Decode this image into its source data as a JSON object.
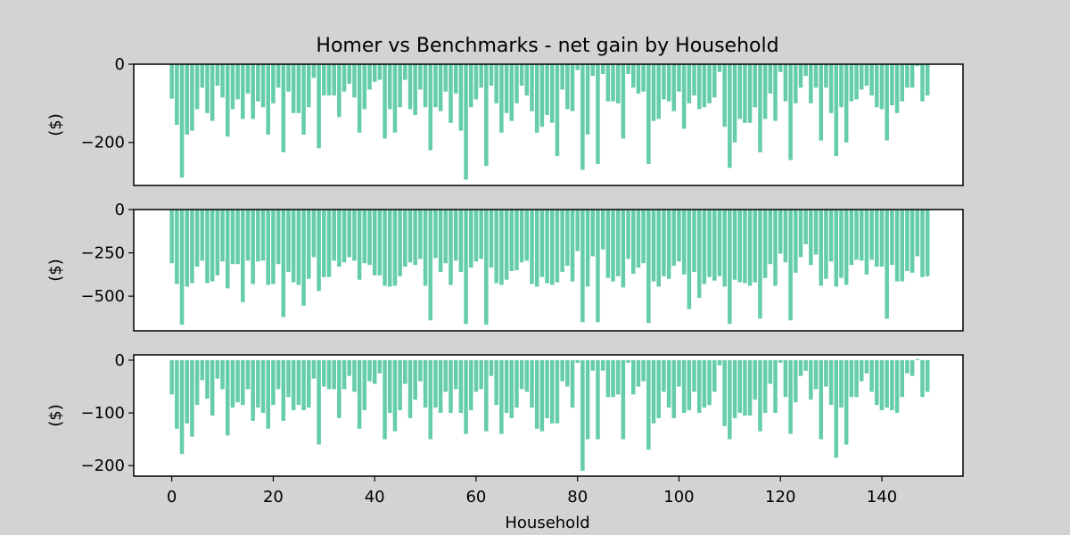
{
  "chart_data": {
    "type": "bar",
    "title": "Homer vs Benchmarks - net gain by Household",
    "xlabel": "Household",
    "bar_color": "#66cdaa",
    "figure_background": "#d3d3d3",
    "axes_background": "#ffffff",
    "x": {
      "start": 0,
      "count": 149,
      "xlim": [
        -7.5,
        156
      ],
      "ticks": [
        0,
        20,
        40,
        60,
        80,
        100,
        120,
        140
      ],
      "tick_labels": [
        "0",
        "20",
        "40",
        "60",
        "80",
        "100",
        "120",
        "140"
      ]
    },
    "panels": [
      {
        "ylabel": "($)",
        "ylim": [
          -310,
          0
        ],
        "ticks": [
          0,
          -200
        ],
        "tick_labels": [
          "0",
          "−200"
        ],
        "values": [
          -88,
          -155,
          -290,
          -180,
          -170,
          -115,
          -60,
          -125,
          -145,
          -55,
          -85,
          -185,
          -115,
          -90,
          -140,
          -75,
          -140,
          -95,
          -110,
          -180,
          -100,
          -60,
          -225,
          -70,
          -125,
          -125,
          -180,
          -110,
          -35,
          -215,
          -80,
          -80,
          -80,
          -135,
          -70,
          -50,
          -85,
          -175,
          -115,
          -65,
          -45,
          -40,
          -190,
          -115,
          -175,
          -110,
          -40,
          -115,
          -130,
          -65,
          -110,
          -220,
          -110,
          -120,
          -70,
          -150,
          -75,
          -170,
          -295,
          -110,
          -90,
          -60,
          -260,
          -55,
          -100,
          -175,
          -125,
          -145,
          -100,
          -55,
          -80,
          -120,
          -175,
          -160,
          -130,
          -150,
          -235,
          -65,
          -115,
          -120,
          -15,
          -270,
          -180,
          -30,
          -255,
          -25,
          -95,
          -95,
          -100,
          -190,
          -25,
          -60,
          -75,
          -70,
          -255,
          -145,
          -140,
          -90,
          -95,
          -120,
          -70,
          -165,
          -100,
          -80,
          -115,
          -110,
          -100,
          -85,
          -20,
          -160,
          -265,
          -200,
          -140,
          -150,
          -150,
          -110,
          -225,
          -140,
          -75,
          -145,
          -20,
          -95,
          -245,
          -100,
          -60,
          -30,
          -100,
          -60,
          -195,
          -60,
          -125,
          -235,
          -110,
          -200,
          -95,
          -90,
          -65,
          -55,
          -80,
          -110,
          -115,
          -195,
          -105,
          -125,
          -95,
          -60,
          -60,
          -5,
          -95,
          -80
        ]
      },
      {
        "ylabel": "($)",
        "ylim": [
          -700,
          0
        ],
        "ticks": [
          0,
          -250,
          -500
        ],
        "tick_labels": [
          "0",
          "−250",
          "−500"
        ],
        "values": [
          -310,
          -430,
          -665,
          -445,
          -425,
          -330,
          -295,
          -425,
          -415,
          -380,
          -300,
          -455,
          -315,
          -315,
          -535,
          -295,
          -430,
          -300,
          -295,
          -435,
          -430,
          -315,
          -620,
          -360,
          -420,
          -435,
          -555,
          -400,
          -275,
          -470,
          -390,
          -390,
          -295,
          -330,
          -305,
          -275,
          -295,
          -405,
          -310,
          -320,
          -380,
          -380,
          -440,
          -445,
          -440,
          -385,
          -330,
          -305,
          -320,
          -285,
          -440,
          -640,
          -280,
          -360,
          -310,
          -435,
          -295,
          -360,
          -660,
          -335,
          -300,
          -285,
          -665,
          -335,
          -425,
          -435,
          -405,
          -355,
          -350,
          -305,
          -295,
          -430,
          -445,
          -390,
          -425,
          -435,
          -420,
          -360,
          -325,
          -415,
          -240,
          -650,
          -445,
          -270,
          -650,
          -230,
          -395,
          -415,
          -385,
          -450,
          -285,
          -370,
          -335,
          -310,
          -655,
          -415,
          -445,
          -385,
          -400,
          -325,
          -300,
          -375,
          -575,
          -360,
          -510,
          -430,
          -390,
          -410,
          -385,
          -445,
          -660,
          -405,
          -420,
          -425,
          -440,
          -420,
          -630,
          -395,
          -315,
          -440,
          -255,
          -305,
          -640,
          -365,
          -275,
          -200,
          -320,
          -260,
          -440,
          -400,
          -300,
          -445,
          -395,
          -435,
          -320,
          -290,
          -295,
          -375,
          -290,
          -330,
          -330,
          -630,
          -320,
          -415,
          -415,
          -355,
          -365,
          -270,
          -390,
          -385
        ]
      },
      {
        "ylabel": "($)",
        "ylim": [
          -220,
          10
        ],
        "ticks": [
          0,
          -100,
          -200
        ],
        "tick_labels": [
          "0",
          "−100",
          "−200"
        ],
        "values": [
          -65,
          -130,
          -178,
          -120,
          -145,
          -85,
          -38,
          -73,
          -105,
          -35,
          -55,
          -143,
          -90,
          -80,
          -85,
          -55,
          -115,
          -90,
          -100,
          -130,
          -85,
          -55,
          -115,
          -70,
          -95,
          -85,
          -95,
          -90,
          -35,
          -160,
          -50,
          -55,
          -55,
          -110,
          -55,
          -30,
          -60,
          -130,
          -95,
          -40,
          -45,
          -25,
          -150,
          -100,
          -135,
          -95,
          -45,
          -110,
          -75,
          -40,
          -90,
          -150,
          -90,
          -100,
          -60,
          -100,
          -55,
          -100,
          -140,
          -95,
          -60,
          -55,
          -135,
          -30,
          -85,
          -140,
          -100,
          -110,
          -90,
          -55,
          -60,
          -90,
          -130,
          -135,
          -110,
          -120,
          -120,
          -40,
          -50,
          -90,
          -5,
          -210,
          -150,
          -20,
          -150,
          -20,
          -70,
          -70,
          -65,
          -150,
          -5,
          -65,
          -50,
          -40,
          -170,
          -120,
          -110,
          -60,
          -90,
          -110,
          -50,
          -100,
          -95,
          -60,
          -100,
          -90,
          -85,
          -60,
          -10,
          -125,
          -150,
          -110,
          -100,
          -105,
          -105,
          -75,
          -135,
          -100,
          -45,
          -100,
          -5,
          -70,
          -140,
          -80,
          -30,
          -20,
          -75,
          -55,
          -150,
          -50,
          -85,
          -185,
          -90,
          -160,
          -70,
          -70,
          -40,
          -25,
          -60,
          -85,
          -95,
          -90,
          -95,
          -100,
          -70,
          -25,
          -30,
          2,
          -70,
          -60
        ]
      }
    ]
  }
}
